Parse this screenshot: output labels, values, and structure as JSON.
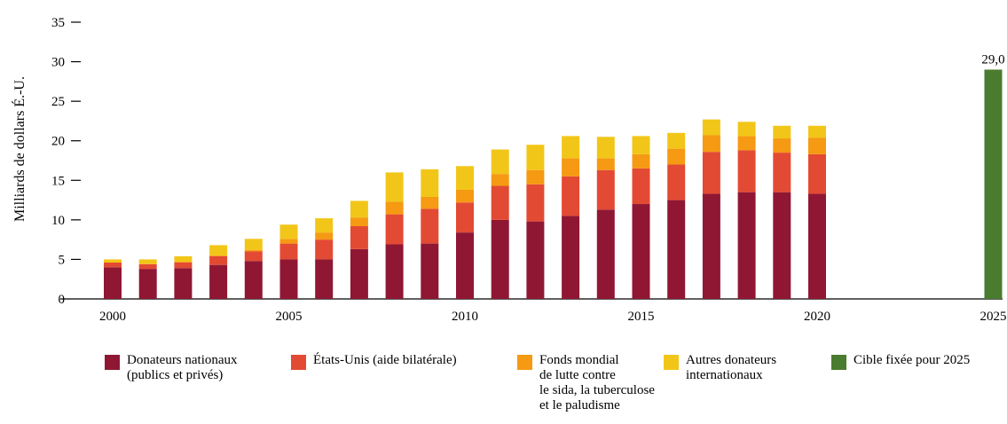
{
  "chart_data": {
    "type": "bar",
    "stacked": true,
    "ylabel": "Milliards de dollars É.-U.",
    "xlabel": "",
    "ylim": [
      0,
      35
    ],
    "yticks": [
      0,
      5,
      10,
      15,
      20,
      25,
      30,
      35
    ],
    "xticks": [
      2000,
      2005,
      2010,
      2015,
      2020,
      2025
    ],
    "x": [
      2000,
      2001,
      2002,
      2003,
      2004,
      2005,
      2006,
      2007,
      2008,
      2009,
      2010,
      2011,
      2012,
      2013,
      2014,
      2015,
      2016,
      2017,
      2018,
      2019,
      2020
    ],
    "series": [
      {
        "name": "Donateurs nationaux\n(publics et privés)",
        "color": "#8f1733",
        "values": [
          4.0,
          3.8,
          3.9,
          4.3,
          4.8,
          5.0,
          5.0,
          6.3,
          6.9,
          7.0,
          8.4,
          10.0,
          9.8,
          10.5,
          11.3,
          12.0,
          12.5,
          13.3,
          13.5,
          13.5,
          13.3
        ]
      },
      {
        "name": "États-Unis (aide bilatérale)",
        "color": "#e34a33",
        "values": [
          0.6,
          0.6,
          0.7,
          1.1,
          1.2,
          2.0,
          2.5,
          2.9,
          3.8,
          4.4,
          3.8,
          4.3,
          4.7,
          5.0,
          5.0,
          4.5,
          4.5,
          5.3,
          5.3,
          5.0,
          5.0
        ]
      },
      {
        "name": "Fonds mondial\nde lutte contre\nle sida, la tuberculose\net le paludisme",
        "color": "#f59a12",
        "values": [
          0.0,
          0.0,
          0.1,
          0.1,
          0.2,
          0.6,
          0.9,
          1.1,
          1.6,
          1.5,
          1.6,
          1.5,
          1.8,
          2.3,
          1.5,
          1.8,
          2.0,
          2.1,
          1.8,
          1.8,
          2.1
        ]
      },
      {
        "name": "Autres donateurs\ninternationaux",
        "color": "#f2c619",
        "values": [
          0.4,
          0.6,
          0.7,
          1.3,
          1.4,
          1.8,
          1.8,
          2.1,
          3.7,
          3.5,
          3.0,
          3.1,
          3.2,
          2.8,
          2.7,
          2.3,
          2.0,
          2.0,
          1.8,
          1.6,
          1.5
        ]
      }
    ],
    "target": {
      "name": "Cible fixée pour 2025",
      "x": 2025,
      "value": 29.0,
      "label": "29,0",
      "color": "#4a7c2f"
    }
  }
}
